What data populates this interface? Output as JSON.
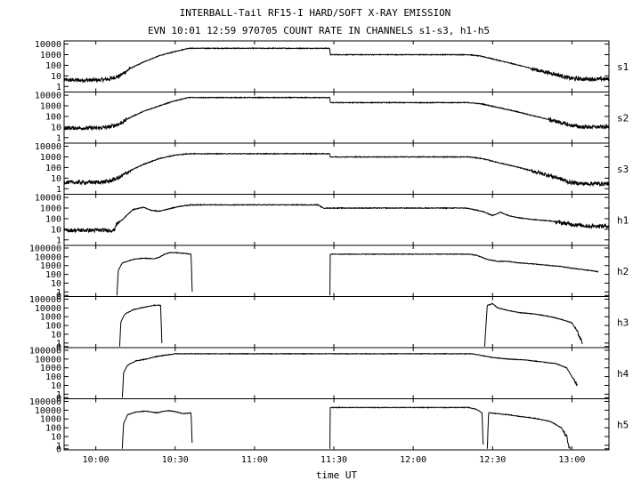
{
  "chart_data": {
    "type": "line",
    "title": "INTERBALL-Tail RF15-I HARD/SOFT X-RAY EMISSION",
    "subtitle": "EVN 10:01 12:59 970705  COUNT RATE IN CHANNELS s1-s3, h1-h5",
    "xlabel": "time UT",
    "x_axis": {
      "unit": "minutes of day (UT)",
      "range": [
        588,
        794
      ],
      "ticks": [
        {
          "value": 600,
          "label": "10:00"
        },
        {
          "value": 630,
          "label": "10:30"
        },
        {
          "value": 660,
          "label": "11:00"
        },
        {
          "value": 690,
          "label": "11:30"
        },
        {
          "value": 720,
          "label": "12:00"
        },
        {
          "value": 750,
          "label": "12:30"
        },
        {
          "value": 780,
          "label": "13:00"
        }
      ]
    },
    "y_scale": "log",
    "grid": false,
    "panels": [
      {
        "name": "s1",
        "ylim": [
          0.3,
          20000
        ],
        "y_ticks": [
          {
            "v": 10000,
            "label": "10000"
          },
          {
            "v": 1000,
            "label": "1000"
          },
          {
            "v": 100,
            "label": "100"
          },
          {
            "v": 10,
            "label": "10"
          },
          {
            "v": 1,
            "label": "1"
          }
        ],
        "series": [
          {
            "x": [
              588,
              601,
              605,
              609,
              613,
              618,
              624,
              630,
              635,
              688.5,
              688.6,
              741,
              746,
              752,
              760,
              768,
              775,
              779,
              784,
              794
            ],
            "y": [
              4,
              4,
              5,
              10,
              50,
              200,
              800,
              2000,
              4000,
              4000,
              1000,
              1000,
              700,
              300,
              100,
              30,
              12,
              6,
              5,
              5
            ]
          }
        ]
      },
      {
        "name": "s2",
        "ylim": [
          0.3,
          20000
        ],
        "y_ticks": [
          {
            "v": 10000,
            "label": "10000"
          },
          {
            "v": 1000,
            "label": "1000"
          },
          {
            "v": 100,
            "label": "100"
          },
          {
            "v": 10,
            "label": "10"
          },
          {
            "v": 1,
            "label": "1"
          }
        ],
        "series": [
          {
            "x": [
              588,
              601,
              605,
              609,
              613,
              618,
              624,
              630,
              635,
              688.5,
              688.6,
              741,
              746,
              752,
              760,
              768,
              775,
              779,
              784,
              794
            ],
            "y": [
              8,
              8,
              10,
              20,
              80,
              300,
              1000,
              3000,
              6000,
              6000,
              2000,
              2000,
              1500,
              700,
              250,
              80,
              30,
              15,
              10,
              10
            ]
          }
        ]
      },
      {
        "name": "s3",
        "ylim": [
          0.3,
          20000
        ],
        "y_ticks": [
          {
            "v": 10000,
            "label": "10000"
          },
          {
            "v": 1000,
            "label": "1000"
          },
          {
            "v": 100,
            "label": "100"
          },
          {
            "v": 10,
            "label": "10"
          },
          {
            "v": 1,
            "label": "1"
          }
        ],
        "series": [
          {
            "x": [
              588,
              601,
              605,
              609,
              613,
              618,
              624,
              630,
              635,
              688.5,
              688.6,
              741,
              746,
              752,
              760,
              768,
              775,
              779,
              784,
              794
            ],
            "y": [
              4,
              4,
              5,
              12,
              50,
              200,
              700,
              1500,
              2000,
              2000,
              1000,
              1000,
              700,
              300,
              100,
              30,
              10,
              4,
              3,
              3
            ]
          }
        ]
      },
      {
        "name": "h1",
        "ylim": [
          0.3,
          20000
        ],
        "y_ticks": [
          {
            "v": 10000,
            "label": "10000"
          },
          {
            "v": 1000,
            "label": "1000"
          },
          {
            "v": 100,
            "label": "100"
          },
          {
            "v": 10,
            "label": "10"
          },
          {
            "v": 1,
            "label": "1"
          }
        ],
        "series": [
          {
            "x": [
              588,
              607,
              607.5,
              610,
              614,
              618,
              621,
              624,
              628,
              632,
              636,
              684,
              686,
              690,
              740,
              746,
              750,
              753,
              756,
              760,
              766,
              772,
              776,
              780,
              786,
              794
            ],
            "y": [
              8,
              8,
              25,
              80,
              700,
              1200,
              600,
              500,
              900,
              1500,
              2000,
              2000,
              1000,
              1000,
              1000,
              500,
              200,
              400,
              200,
              120,
              80,
              60,
              40,
              30,
              20,
              20
            ]
          }
        ]
      },
      {
        "name": "h2",
        "ylim": [
          0.3,
          200000
        ],
        "y_ticks": [
          {
            "v": 100000,
            "label": "100000"
          },
          {
            "v": 10000,
            "label": "10000"
          },
          {
            "v": 1000,
            "label": "1000"
          },
          {
            "v": 100,
            "label": "100"
          },
          {
            "v": 10,
            "label": "10"
          },
          {
            "v": 1,
            "label": "1"
          },
          {
            "v": 0.4,
            "label": "0"
          }
        ],
        "series": [
          {
            "x": [
              608,
              608.5,
              610,
              614,
              618,
              622,
              624,
              626,
              628,
              630,
              633,
              636,
              636.5
            ],
            "y": [
              0.4,
              300,
              2000,
              5000,
              7000,
              6000,
              9000,
              20000,
              30000,
              30000,
              25000,
              20000,
              0.4
            ]
          },
          {
            "x": [
              688.5,
              688.6,
              741,
              744,
              748,
              752,
              756,
              760,
              766,
              772,
              776,
              780,
              786,
              790
            ],
            "y": [
              0.4,
              20000,
              20000,
              15000,
              5000,
              3000,
              3000,
              2000,
              1500,
              1000,
              800,
              500,
              300,
              200
            ]
          }
        ]
      },
      {
        "name": "h3",
        "ylim": [
          0.3,
          200000
        ],
        "y_ticks": [
          {
            "v": 100000,
            "label": "100000"
          },
          {
            "v": 10000,
            "label": "10000"
          },
          {
            "v": 1000,
            "label": "1000"
          },
          {
            "v": 100,
            "label": "100"
          },
          {
            "v": 10,
            "label": "10"
          },
          {
            "v": 1,
            "label": "1"
          },
          {
            "v": 0.4,
            "label": "0"
          }
        ],
        "series": [
          {
            "x": [
              609,
              609.5,
              611,
              614,
              617,
              620,
              622,
              624.5,
              625
            ],
            "y": [
              0.4,
              300,
              2000,
              6000,
              10000,
              15000,
              20000,
              20000,
              0.4
            ]
          },
          {
            "x": [
              747,
              748,
              750,
              752,
              756,
              760,
              766,
              772,
              776,
              780,
              782,
              784
            ],
            "y": [
              0.4,
              20000,
              30000,
              10000,
              5000,
              3000,
              2000,
              1000,
              500,
              200,
              20,
              1
            ]
          }
        ]
      },
      {
        "name": "h4",
        "ylim": [
          0.3,
          200000
        ],
        "y_ticks": [
          {
            "v": 100000,
            "label": "100000"
          },
          {
            "v": 10000,
            "label": "10000"
          },
          {
            "v": 1000,
            "label": "1000"
          },
          {
            "v": 100,
            "label": "100"
          },
          {
            "v": 10,
            "label": "10"
          },
          {
            "v": 1,
            "label": "1"
          },
          {
            "v": 0.4,
            "label": "0"
          }
        ],
        "series": [
          {
            "x": [
              610,
              610.5,
              612,
              615,
              619,
              623,
              627,
              630,
              633,
              690,
              742,
              746,
              750,
              756,
              762,
              768,
              774,
              778,
              780,
              782
            ],
            "y": [
              0.4,
              300,
              2000,
              6000,
              10000,
              20000,
              30000,
              40000,
              40000,
              40000,
              40000,
              25000,
              15000,
              10000,
              8000,
              5000,
              3000,
              1000,
              100,
              10
            ]
          }
        ]
      },
      {
        "name": "h5",
        "ylim": [
          0.3,
          200000
        ],
        "y_ticks": [
          {
            "v": 100000,
            "label": "100000"
          },
          {
            "v": 10000,
            "label": "10000"
          },
          {
            "v": 1000,
            "label": "1000"
          },
          {
            "v": 100,
            "label": "100"
          },
          {
            "v": 10,
            "label": "10"
          },
          {
            "v": 1,
            "label": "1"
          },
          {
            "v": 0.4,
            "label": "0"
          }
        ],
        "series": [
          {
            "x": [
              610,
              610.5,
              612,
              615,
              619,
              623,
              627,
              630,
              633,
              636,
              636.5
            ],
            "y": [
              0.4,
              300,
              3000,
              6000,
              8000,
              5000,
              9000,
              7000,
              4000,
              5000,
              0.4
            ]
          },
          {
            "x": [
              688.5,
              688.6,
              741,
              744,
              746,
              746.5
            ],
            "y": [
              0.4,
              20000,
              20000,
              12000,
              5000,
              0.4
            ]
          },
          {
            "x": [
              748,
              748.5,
              752,
              756,
              760,
              766,
              772,
              776,
              778,
              779,
              779.5
            ],
            "y": [
              0.4,
              5000,
              4000,
              3000,
              2000,
              1200,
              500,
              100,
              10,
              0.5,
              0.4
            ]
          }
        ]
      }
    ]
  }
}
